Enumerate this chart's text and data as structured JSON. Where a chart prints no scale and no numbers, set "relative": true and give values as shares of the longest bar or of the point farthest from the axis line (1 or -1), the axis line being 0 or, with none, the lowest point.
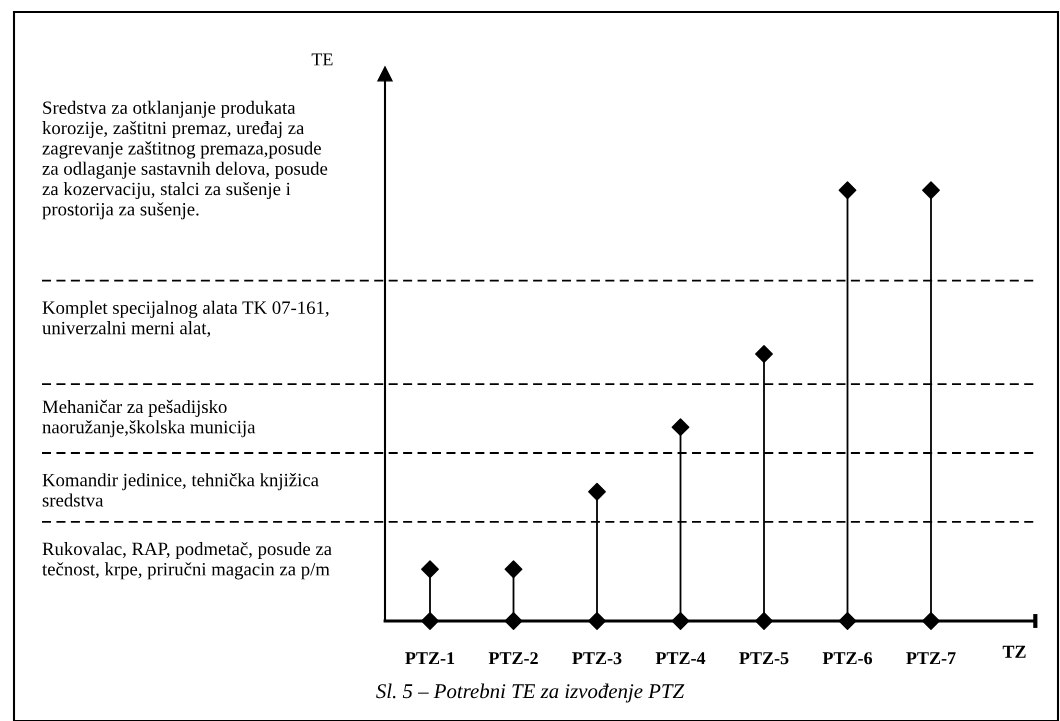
{
  "chart_data": {
    "type": "lollipop",
    "relative": true,
    "title": "Sl. 5 – Potrebni TE za izvođenje PTZ",
    "xlabel": "TZ",
    "categories": [
      "PTZ-1",
      "PTZ-2",
      "PTZ-3",
      "PTZ-4",
      "PTZ-5",
      "PTZ-6",
      "PTZ-7"
    ],
    "series": [
      {
        "color": "#000000",
        "values": [
          0.12,
          0.12,
          0.3,
          0.45,
          0.62,
          1,
          1
        ]
      },
      {
        "type": "scatter",
        "color": "#000000",
        "values": [
          0,
          0,
          0,
          0,
          0,
          0,
          0
        ]
      }
    ],
    "marker": "diamond",
    "ref_lines": [
      {
        "axis": "y",
        "value": 0.23,
        "line_style": "dashed",
        "color": "#000000"
      },
      {
        "axis": "y",
        "value": 0.39,
        "line_style": "dashed",
        "color": "#000000"
      },
      {
        "axis": "y",
        "value": 0.55,
        "line_style": "dashed",
        "color": "#000000"
      },
      {
        "axis": "y",
        "value": 0.79,
        "line_style": "dashed",
        "color": "#000000"
      }
    ],
    "annotations": [
      "TE",
      "Sredstva za otklanjanje produkata\nkorozije, zaštitni premaz, uređaj za\nzagrevanje zaštitnog premaza,posude\nza odlaganje sastavnih delova, posude\nza kozervaciju, stalci za sušenje i\nprostorija za sušenje.",
      "Komplet specijalnog alata TK 07-161,\nuniverzalni merni alat,",
      "Mehaničar za pešadijsko\nnaoružanje,školska municija",
      "Komandir jedinice, tehnička knjižica\nsredstva",
      "Rukovalac, RAP, podmetač, posude za\ntečnost, krpe, priručni magacin za p/m"
    ]
  }
}
